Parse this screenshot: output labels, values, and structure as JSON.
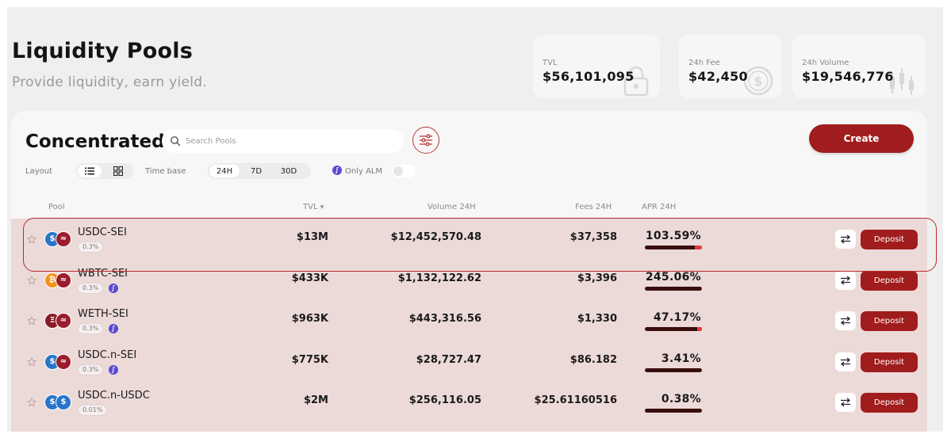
{
  "page": {
    "title": "Liquidity Pools",
    "subtitle": "Provide liquidity, earn yield."
  },
  "stats": {
    "tvl": {
      "label": "TVL",
      "value": "$56,101,095",
      "icon": "lock-icon"
    },
    "fee": {
      "label": "24h Fee",
      "value": "$42,450",
      "icon": "dollar-coin-icon"
    },
    "volume": {
      "label": "24h Volume",
      "value": "$19,546,776",
      "icon": "candlestick-icon"
    }
  },
  "card": {
    "title": "Concentrated",
    "search_placeholder": "Search Pools",
    "create_label": "Create",
    "layout_label": "Layout",
    "timebase_label": "Time base",
    "timebase_options": [
      "24H",
      "7D",
      "30D"
    ],
    "timebase_selected": "24H",
    "only_alm_label": "Only ALM",
    "only_alm_enabled": false
  },
  "table": {
    "headers": {
      "pool": "Pool",
      "tvl": "TVL",
      "tvl_sort": "▾",
      "volume": "Volume 24H",
      "fees": "Fees 24H",
      "apr": "APR 24H"
    },
    "rows": [
      {
        "pair": "USDC-SEI",
        "fee_tier": "0.3%",
        "alm": false,
        "tvl": "$13M",
        "volume": "$12,452,570.48",
        "fees": "$37,358",
        "apr": "103.59%",
        "apr_bar_red_fraction": 0.12,
        "token_a": "usdc",
        "token_b": "sei",
        "deposit_label": "Deposit"
      },
      {
        "pair": "WBTC-SEI",
        "fee_tier": "0.3%",
        "alm": true,
        "tvl": "$433K",
        "volume": "$1,132,122.62",
        "fees": "$3,396",
        "apr": "245.06%",
        "apr_bar_red_fraction": 0.02,
        "token_a": "wbtc",
        "token_b": "sei",
        "deposit_label": "Deposit"
      },
      {
        "pair": "WETH-SEI",
        "fee_tier": "0.3%",
        "alm": true,
        "tvl": "$963K",
        "volume": "$443,316.56",
        "fees": "$1,330",
        "apr": "47.17%",
        "apr_bar_red_fraction": 0.08,
        "token_a": "weth",
        "token_b": "sei",
        "deposit_label": "Deposit"
      },
      {
        "pair": "USDC.n-SEI",
        "fee_tier": "0.3%",
        "alm": true,
        "tvl": "$775K",
        "volume": "$28,727.47",
        "fees": "$86.182",
        "apr": "3.41%",
        "apr_bar_red_fraction": 0.0,
        "token_a": "usdc",
        "token_b": "sei",
        "deposit_label": "Deposit"
      },
      {
        "pair": "USDC.n-USDC",
        "fee_tier": "0.01%",
        "alm": false,
        "tvl": "$2M",
        "volume": "$256,116.05",
        "fees": "$25.61160516",
        "apr": "0.38%",
        "apr_bar_red_fraction": 0.0,
        "token_a": "usdc",
        "token_b": "usdc",
        "deposit_label": "Deposit"
      }
    ]
  },
  "colors": {
    "brand": "#a11c1c",
    "row_bg": "#ecdad9",
    "apr_bar": "#3a0d0d",
    "apr_bar_accent": "#e23a3a",
    "alm": "#5d4ad0",
    "usdc": "#2775ca",
    "sei": "#9b1c2c",
    "wbtc": "#f7931a",
    "weth": "#8a1b2b"
  }
}
